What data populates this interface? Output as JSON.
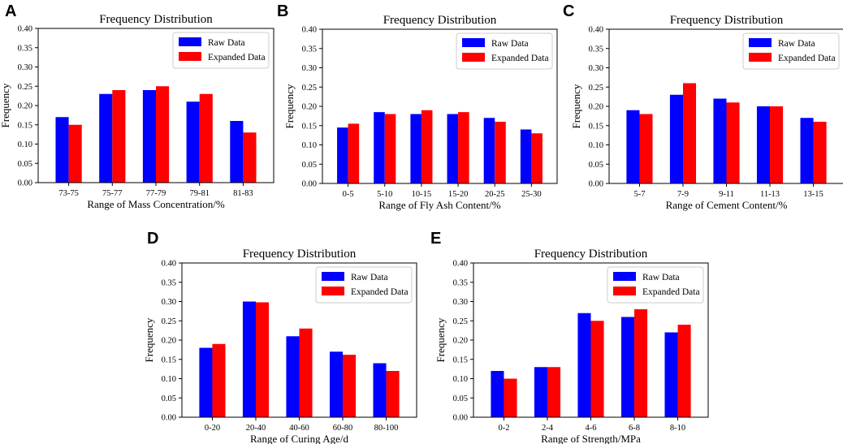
{
  "colors": {
    "raw": "#0000ff",
    "expanded": "#ff0000"
  },
  "chart_data": [
    {
      "panel": "A",
      "type": "bar",
      "title": "Frequency Distribution",
      "xlabel": "Range of Mass Concentration/%",
      "ylabel": "Frequency",
      "ylim": [
        0,
        0.4
      ],
      "yticks": [
        "0.00",
        "0.05",
        "0.10",
        "0.15",
        "0.20",
        "0.25",
        "0.30",
        "0.35",
        "0.40"
      ],
      "categories": [
        "73-75",
        "75-77",
        "77-79",
        "79-81",
        "81-83"
      ],
      "legend": "top-right",
      "series": [
        {
          "name": "Raw Data",
          "values": [
            0.17,
            0.23,
            0.24,
            0.21,
            0.16
          ]
        },
        {
          "name": "Expanded Data",
          "values": [
            0.15,
            0.24,
            0.25,
            0.23,
            0.13
          ]
        }
      ]
    },
    {
      "panel": "B",
      "type": "bar",
      "title": "Frequency Distribution",
      "xlabel": "Range of Fly Ash Content/%",
      "ylabel": "Frequency",
      "ylim": [
        0,
        0.4
      ],
      "yticks": [
        "0.00",
        "0.05",
        "0.10",
        "0.15",
        "0.20",
        "0.25",
        "0.30",
        "0.35",
        "0.40"
      ],
      "categories": [
        "0-5",
        "5-10",
        "10-15",
        "15-20",
        "20-25",
        "25-30"
      ],
      "legend": "top-right",
      "series": [
        {
          "name": "Raw Data",
          "values": [
            0.145,
            0.185,
            0.18,
            0.18,
            0.17,
            0.14
          ]
        },
        {
          "name": "Expanded Data",
          "values": [
            0.155,
            0.18,
            0.19,
            0.185,
            0.16,
            0.13
          ]
        }
      ]
    },
    {
      "panel": "C",
      "type": "bar",
      "title": "Frequency Distribution",
      "xlabel": "Range of Cement Content/%",
      "ylabel": "Frequency",
      "ylim": [
        0,
        0.4
      ],
      "yticks": [
        "0.00",
        "0.05",
        "0.10",
        "0.15",
        "0.20",
        "0.25",
        "0.30",
        "0.35",
        "0.40"
      ],
      "categories": [
        "5-7",
        "7-9",
        "9-11",
        "11-13",
        "13-15"
      ],
      "legend": "top-right",
      "series": [
        {
          "name": "Raw Data",
          "values": [
            0.19,
            0.23,
            0.22,
            0.2,
            0.17
          ]
        },
        {
          "name": "Expanded Data",
          "values": [
            0.18,
            0.26,
            0.21,
            0.2,
            0.16
          ]
        }
      ]
    },
    {
      "panel": "D",
      "type": "bar",
      "title": "Frequency Distribution",
      "xlabel": "Range of Curing Age/d",
      "ylabel": "Frequency",
      "ylim": [
        0,
        0.4
      ],
      "yticks": [
        "0.00",
        "0.05",
        "0.10",
        "0.15",
        "0.20",
        "0.25",
        "0.30",
        "0.35",
        "0.40"
      ],
      "categories": [
        "0-20",
        "20-40",
        "40-60",
        "60-80",
        "80-100"
      ],
      "legend": "top-right",
      "series": [
        {
          "name": "Raw Data",
          "values": [
            0.18,
            0.3,
            0.21,
            0.17,
            0.14
          ]
        },
        {
          "name": "Expanded Data",
          "values": [
            0.19,
            0.298,
            0.23,
            0.162,
            0.12
          ]
        }
      ]
    },
    {
      "panel": "E",
      "type": "bar",
      "title": "Frequency Distribution",
      "xlabel": "Range of Strength/MPa",
      "ylabel": "Frequency",
      "ylim": [
        0,
        0.4
      ],
      "yticks": [
        "0.00",
        "0.05",
        "0.10",
        "0.15",
        "0.20",
        "0.25",
        "0.30",
        "0.35",
        "0.40"
      ],
      "categories": [
        "0-2",
        "2-4",
        "4-6",
        "6-8",
        "8-10"
      ],
      "legend": "top-right",
      "series": [
        {
          "name": "Raw Data",
          "values": [
            0.12,
            0.13,
            0.27,
            0.26,
            0.22
          ]
        },
        {
          "name": "Expanded Data",
          "values": [
            0.1,
            0.13,
            0.25,
            0.28,
            0.24
          ]
        }
      ]
    }
  ]
}
